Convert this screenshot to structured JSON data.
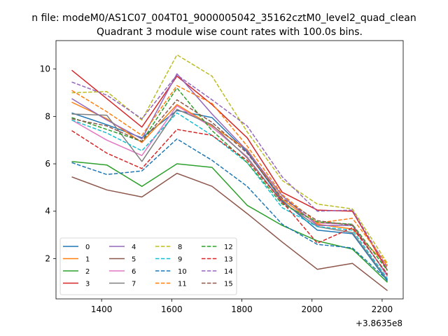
{
  "chart_data": {
    "type": "line",
    "suptitle": "n file: modeM0/AS1C07_004T01_9000005042_35162cztM0_level2_quad_clean",
    "title": "Quadrant 3 module wise count rates with 100.0s bins.",
    "xlabel": "",
    "ylabel": "",
    "x_offset_label": "+3.8635e8",
    "xlim": [
      1270,
      2260
    ],
    "ylim": [
      0.3,
      11.2
    ],
    "x_ticks": [
      1400,
      1600,
      1800,
      2000,
      2200
    ],
    "x_tick_labels": [
      "1400",
      "1600",
      "1800",
      "2000",
      "2200"
    ],
    "y_ticks": [
      2,
      4,
      6,
      8,
      10
    ],
    "y_tick_labels": [
      "2",
      "4",
      "6",
      "8",
      "10"
    ],
    "legend_position": "lower-left",
    "x": [
      1315,
      1415,
      1515,
      1615,
      1715,
      1815,
      1915,
      2015,
      2115,
      2215
    ],
    "series": [
      {
        "name": "0",
        "color": "#1f77b4",
        "style": "solid",
        "values": [
          8.15,
          7.65,
          7.1,
          8.25,
          7.95,
          6.5,
          4.45,
          3.2,
          3.05,
          1.05
        ]
      },
      {
        "name": "1",
        "color": "#ff7f0e",
        "style": "solid",
        "values": [
          8.6,
          7.9,
          6.9,
          8.5,
          7.6,
          6.6,
          4.5,
          3.45,
          3.25,
          1.7
        ]
      },
      {
        "name": "2",
        "color": "#2ca02c",
        "style": "solid",
        "values": [
          6.1,
          5.95,
          5.05,
          6.0,
          5.85,
          4.25,
          3.4,
          2.75,
          2.4,
          1.0
        ]
      },
      {
        "name": "3",
        "color": "#d62728",
        "style": "solid",
        "values": [
          9.95,
          8.75,
          7.55,
          9.7,
          8.5,
          7.1,
          4.8,
          4.05,
          4.0,
          1.5
        ]
      },
      {
        "name": "4",
        "color": "#9467bd",
        "style": "solid",
        "values": [
          8.75,
          7.85,
          7.05,
          9.8,
          8.1,
          6.55,
          4.65,
          3.4,
          3.4,
          1.3
        ]
      },
      {
        "name": "5",
        "color": "#8c564b",
        "style": "solid",
        "values": [
          5.45,
          4.9,
          4.6,
          5.6,
          5.05,
          3.9,
          2.7,
          1.55,
          1.8,
          0.65
        ]
      },
      {
        "name": "6",
        "color": "#e377c2",
        "style": "solid",
        "values": [
          7.85,
          7.0,
          6.35,
          8.45,
          7.55,
          6.3,
          4.35,
          3.5,
          3.45,
          1.25
        ]
      },
      {
        "name": "7",
        "color": "#7f7f7f",
        "style": "solid",
        "values": [
          8.1,
          8.05,
          6.1,
          8.3,
          7.65,
          6.25,
          4.4,
          3.35,
          3.1,
          1.1
        ]
      },
      {
        "name": "8",
        "color": "#bcbd22",
        "style": "dashed",
        "values": [
          9.0,
          9.05,
          7.85,
          10.6,
          9.7,
          7.35,
          5.3,
          4.3,
          4.1,
          1.8
        ]
      },
      {
        "name": "9",
        "color": "#17becf",
        "style": "dashed",
        "values": [
          7.85,
          7.3,
          6.55,
          8.15,
          7.2,
          6.05,
          4.15,
          3.35,
          3.2,
          1.15
        ]
      },
      {
        "name": "10",
        "color": "#1f77b4",
        "style": "dashed",
        "values": [
          6.05,
          5.55,
          5.7,
          7.05,
          6.15,
          5.05,
          3.45,
          2.6,
          2.45,
          1.1
        ]
      },
      {
        "name": "11",
        "color": "#ff7f0e",
        "style": "dashed",
        "values": [
          9.1,
          8.2,
          7.2,
          9.3,
          8.55,
          6.75,
          4.7,
          3.5,
          3.7,
          1.75
        ]
      },
      {
        "name": "12",
        "color": "#2ca02c",
        "style": "dashed",
        "values": [
          7.95,
          7.45,
          6.95,
          9.2,
          7.4,
          6.05,
          4.3,
          3.55,
          3.45,
          1.5
        ]
      },
      {
        "name": "13",
        "color": "#d62728",
        "style": "dashed",
        "values": [
          7.4,
          6.45,
          5.8,
          7.45,
          7.2,
          6.15,
          4.4,
          2.65,
          3.3,
          1.35
        ]
      },
      {
        "name": "14",
        "color": "#9467bd",
        "style": "dashed",
        "values": [
          9.45,
          8.9,
          7.9,
          9.75,
          8.7,
          7.6,
          5.45,
          4.0,
          4.05,
          1.6
        ]
      },
      {
        "name": "15",
        "color": "#8c564b",
        "style": "dashed",
        "values": [
          7.9,
          7.6,
          6.95,
          8.7,
          7.75,
          6.45,
          4.55,
          3.6,
          3.4,
          1.3
        ]
      }
    ]
  }
}
